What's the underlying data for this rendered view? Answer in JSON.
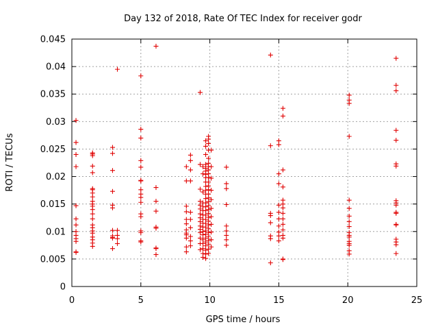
{
  "chart_data": {
    "type": "scatter",
    "title": "Day 132 of 2018, Rate Of TEC Index for receiver godr",
    "xlabel": "GPS time / hours",
    "ylabel": "ROTI / TECUs",
    "xlim": [
      0,
      25
    ],
    "ylim": [
      0,
      0.045
    ],
    "xticks": [
      0,
      5,
      10,
      15,
      20,
      25
    ],
    "xtick_labels": [
      "0",
      "5",
      "10",
      "15",
      "20",
      "25"
    ],
    "yticks": [
      0,
      0.005,
      0.01,
      0.015,
      0.02,
      0.025,
      0.03,
      0.035,
      0.04,
      0.045
    ],
    "ytick_labels": [
      "0",
      "0.005",
      "0.01",
      "0.015",
      "0.02",
      "0.025",
      "0.03",
      "0.035",
      "0.04",
      "0.045"
    ],
    "grid": true,
    "marker": "+",
    "marker_color": "#e00000",
    "series": [
      {
        "name": "ROTI",
        "points": [
          [
            0.3,
            0.0302
          ],
          [
            0.3,
            0.0262
          ],
          [
            0.3,
            0.024
          ],
          [
            0.3,
            0.0218
          ],
          [
            0.3,
            0.0147
          ],
          [
            0.3,
            0.0123
          ],
          [
            0.3,
            0.0112
          ],
          [
            0.3,
            0.01
          ],
          [
            0.3,
            0.0093
          ],
          [
            0.3,
            0.0087
          ],
          [
            0.3,
            0.0082
          ],
          [
            0.3,
            0.0063
          ],
          [
            0.3,
            0.0062
          ],
          [
            1.5,
            0.0243
          ],
          [
            1.5,
            0.0241
          ],
          [
            1.5,
            0.0238
          ],
          [
            1.5,
            0.0219
          ],
          [
            1.5,
            0.0207
          ],
          [
            1.5,
            0.0178
          ],
          [
            1.5,
            0.0176
          ],
          [
            1.5,
            0.017
          ],
          [
            1.5,
            0.0163
          ],
          [
            1.5,
            0.0155
          ],
          [
            1.5,
            0.015
          ],
          [
            1.5,
            0.0146
          ],
          [
            1.5,
            0.014
          ],
          [
            1.5,
            0.0132
          ],
          [
            1.5,
            0.0123
          ],
          [
            1.5,
            0.0112
          ],
          [
            1.5,
            0.0107
          ],
          [
            1.5,
            0.0101
          ],
          [
            1.5,
            0.0097
          ],
          [
            1.5,
            0.009
          ],
          [
            1.5,
            0.0085
          ],
          [
            1.5,
            0.0079
          ],
          [
            1.5,
            0.0073
          ],
          [
            2.95,
            0.0253
          ],
          [
            2.95,
            0.0242
          ],
          [
            2.95,
            0.0211
          ],
          [
            2.95,
            0.0173
          ],
          [
            2.95,
            0.0148
          ],
          [
            2.95,
            0.0143
          ],
          [
            2.95,
            0.0102
          ],
          [
            2.95,
            0.0092
          ],
          [
            2.95,
            0.0089
          ],
          [
            2.95,
            0.0088
          ],
          [
            2.95,
            0.0069
          ],
          [
            3.3,
            0.0395
          ],
          [
            3.3,
            0.0102
          ],
          [
            3.3,
            0.0093
          ],
          [
            3.3,
            0.0087
          ],
          [
            3.3,
            0.0078
          ],
          [
            5.0,
            0.0383
          ],
          [
            5.0,
            0.0286
          ],
          [
            5.0,
            0.027
          ],
          [
            5.0,
            0.0229
          ],
          [
            5.0,
            0.0217
          ],
          [
            5.0,
            0.0193
          ],
          [
            5.0,
            0.0192
          ],
          [
            5.0,
            0.0176
          ],
          [
            5.0,
            0.0168
          ],
          [
            5.0,
            0.0162
          ],
          [
            5.0,
            0.0153
          ],
          [
            5.0,
            0.0132
          ],
          [
            5.0,
            0.0127
          ],
          [
            5.0,
            0.0101
          ],
          [
            5.0,
            0.0098
          ],
          [
            5.0,
            0.0083
          ],
          [
            5.0,
            0.0081
          ],
          [
            6.1,
            0.0437
          ],
          [
            6.1,
            0.018
          ],
          [
            6.1,
            0.0155
          ],
          [
            6.1,
            0.0137
          ],
          [
            6.1,
            0.0108
          ],
          [
            6.1,
            0.0106
          ],
          [
            6.1,
            0.007
          ],
          [
            6.1,
            0.0069
          ],
          [
            6.1,
            0.0058
          ],
          [
            8.3,
            0.0218
          ],
          [
            8.3,
            0.0192
          ],
          [
            8.3,
            0.0146
          ],
          [
            8.3,
            0.0136
          ],
          [
            8.3,
            0.0122
          ],
          [
            8.3,
            0.0114
          ],
          [
            8.3,
            0.0103
          ],
          [
            8.3,
            0.0097
          ],
          [
            8.3,
            0.0094
          ],
          [
            8.3,
            0.0088
          ],
          [
            8.3,
            0.0072
          ],
          [
            8.3,
            0.0063
          ],
          [
            8.6,
            0.0239
          ],
          [
            8.6,
            0.0229
          ],
          [
            8.6,
            0.0212
          ],
          [
            8.6,
            0.0192
          ],
          [
            8.6,
            0.0135
          ],
          [
            8.6,
            0.0122
          ],
          [
            8.6,
            0.0107
          ],
          [
            8.6,
            0.0091
          ],
          [
            8.6,
            0.0083
          ],
          [
            8.6,
            0.0074
          ],
          [
            9.3,
            0.0353
          ],
          [
            9.3,
            0.0222
          ],
          [
            9.3,
            0.0177
          ],
          [
            9.3,
            0.0155
          ],
          [
            9.3,
            0.0148
          ],
          [
            9.3,
            0.0141
          ],
          [
            9.3,
            0.0132
          ],
          [
            9.3,
            0.0125
          ],
          [
            9.3,
            0.0118
          ],
          [
            9.3,
            0.011
          ],
          [
            9.3,
            0.0104
          ],
          [
            9.3,
            0.0098
          ],
          [
            9.3,
            0.0088
          ],
          [
            9.3,
            0.0078
          ],
          [
            9.3,
            0.0067
          ],
          [
            9.5,
            0.0218
          ],
          [
            9.5,
            0.0205
          ],
          [
            9.5,
            0.0172
          ],
          [
            9.5,
            0.0152
          ],
          [
            9.5,
            0.0145
          ],
          [
            9.5,
            0.0138
          ],
          [
            9.5,
            0.013
          ],
          [
            9.5,
            0.0122
          ],
          [
            9.5,
            0.0115
          ],
          [
            9.5,
            0.0108
          ],
          [
            9.5,
            0.01
          ],
          [
            9.5,
            0.0094
          ],
          [
            9.5,
            0.0085
          ],
          [
            9.5,
            0.0078
          ],
          [
            9.5,
            0.0069
          ],
          [
            9.5,
            0.006
          ],
          [
            9.5,
            0.0053
          ],
          [
            9.7,
            0.0265
          ],
          [
            9.7,
            0.0255
          ],
          [
            9.7,
            0.024
          ],
          [
            9.7,
            0.0222
          ],
          [
            9.7,
            0.0215
          ],
          [
            9.7,
            0.021
          ],
          [
            9.7,
            0.0204
          ],
          [
            9.7,
            0.0198
          ],
          [
            9.7,
            0.019
          ],
          [
            9.7,
            0.0182
          ],
          [
            9.7,
            0.0175
          ],
          [
            9.7,
            0.0168
          ],
          [
            9.7,
            0.016
          ],
          [
            9.7,
            0.0152
          ],
          [
            9.7,
            0.0145
          ],
          [
            9.7,
            0.0138
          ],
          [
            9.7,
            0.013
          ],
          [
            9.7,
            0.0122
          ],
          [
            9.7,
            0.0115
          ],
          [
            9.7,
            0.0108
          ],
          [
            9.7,
            0.0101
          ],
          [
            9.7,
            0.0095
          ],
          [
            9.7,
            0.0088
          ],
          [
            9.7,
            0.0081
          ],
          [
            9.7,
            0.0074
          ],
          [
            9.7,
            0.0066
          ],
          [
            9.7,
            0.0059
          ],
          [
            9.7,
            0.0051
          ],
          [
            9.9,
            0.0273
          ],
          [
            9.9,
            0.0268
          ],
          [
            9.9,
            0.026
          ],
          [
            9.9,
            0.0248
          ],
          [
            9.9,
            0.0233
          ],
          [
            9.9,
            0.0224
          ],
          [
            9.9,
            0.0218
          ],
          [
            9.9,
            0.0212
          ],
          [
            9.9,
            0.0205
          ],
          [
            9.9,
            0.0198
          ],
          [
            9.9,
            0.019
          ],
          [
            9.9,
            0.0183
          ],
          [
            9.9,
            0.0176
          ],
          [
            9.9,
            0.0168
          ],
          [
            9.9,
            0.0161
          ],
          [
            9.9,
            0.0154
          ],
          [
            9.9,
            0.0147
          ],
          [
            9.9,
            0.014
          ],
          [
            9.9,
            0.0133
          ],
          [
            9.9,
            0.0126
          ],
          [
            9.9,
            0.0119
          ],
          [
            9.9,
            0.0112
          ],
          [
            9.9,
            0.0105
          ],
          [
            9.9,
            0.0098
          ],
          [
            9.9,
            0.0091
          ],
          [
            9.9,
            0.0084
          ],
          [
            9.9,
            0.0077
          ],
          [
            9.9,
            0.0068
          ],
          [
            9.9,
            0.006
          ],
          [
            10.1,
            0.0248
          ],
          [
            10.1,
            0.0218
          ],
          [
            10.1,
            0.0197
          ],
          [
            10.1,
            0.0175
          ],
          [
            10.1,
            0.0158
          ],
          [
            10.1,
            0.0142
          ],
          [
            10.1,
            0.0127
          ],
          [
            10.1,
            0.0113
          ],
          [
            10.1,
            0.0099
          ],
          [
            10.1,
            0.0085
          ],
          [
            10.1,
            0.0072
          ],
          [
            11.2,
            0.0217
          ],
          [
            11.2,
            0.0187
          ],
          [
            11.2,
            0.0178
          ],
          [
            11.2,
            0.0149
          ],
          [
            11.2,
            0.011
          ],
          [
            11.2,
            0.0101
          ],
          [
            11.2,
            0.0093
          ],
          [
            11.2,
            0.0085
          ],
          [
            11.2,
            0.0075
          ],
          [
            14.4,
            0.0421
          ],
          [
            14.4,
            0.0256
          ],
          [
            14.4,
            0.0133
          ],
          [
            14.4,
            0.0129
          ],
          [
            14.4,
            0.0116
          ],
          [
            14.4,
            0.0092
          ],
          [
            14.4,
            0.0087
          ],
          [
            14.4,
            0.0043
          ],
          [
            15.0,
            0.0265
          ],
          [
            15.0,
            0.0258
          ],
          [
            15.0,
            0.0205
          ],
          [
            15.0,
            0.0187
          ],
          [
            15.0,
            0.0148
          ],
          [
            15.0,
            0.0135
          ],
          [
            15.0,
            0.0123
          ],
          [
            15.0,
            0.011
          ],
          [
            15.0,
            0.0099
          ],
          [
            15.0,
            0.0092
          ],
          [
            15.0,
            0.0083
          ],
          [
            15.3,
            0.0324
          ],
          [
            15.3,
            0.031
          ],
          [
            15.3,
            0.0212
          ],
          [
            15.3,
            0.0181
          ],
          [
            15.3,
            0.0157
          ],
          [
            15.3,
            0.015
          ],
          [
            15.3,
            0.0143
          ],
          [
            15.3,
            0.0133
          ],
          [
            15.3,
            0.0123
          ],
          [
            15.3,
            0.0113
          ],
          [
            15.3,
            0.0103
          ],
          [
            15.3,
            0.0093
          ],
          [
            15.3,
            0.0088
          ],
          [
            15.3,
            0.005
          ],
          [
            15.3,
            0.0049
          ],
          [
            20.1,
            0.0348
          ],
          [
            20.1,
            0.0339
          ],
          [
            20.1,
            0.0333
          ],
          [
            20.1,
            0.0273
          ],
          [
            20.1,
            0.0157
          ],
          [
            20.1,
            0.0142
          ],
          [
            20.1,
            0.0128
          ],
          [
            20.1,
            0.0118
          ],
          [
            20.1,
            0.0109
          ],
          [
            20.1,
            0.0098
          ],
          [
            20.1,
            0.0093
          ],
          [
            20.1,
            0.009
          ],
          [
            20.1,
            0.0082
          ],
          [
            20.1,
            0.0078
          ],
          [
            20.1,
            0.0075
          ],
          [
            20.1,
            0.0065
          ],
          [
            20.1,
            0.0059
          ],
          [
            23.5,
            0.0415
          ],
          [
            23.5,
            0.0366
          ],
          [
            23.5,
            0.0356
          ],
          [
            23.5,
            0.0284
          ],
          [
            23.5,
            0.0266
          ],
          [
            23.5,
            0.0223
          ],
          [
            23.5,
            0.0219
          ],
          [
            23.5,
            0.0156
          ],
          [
            23.5,
            0.0152
          ],
          [
            23.5,
            0.0148
          ],
          [
            23.5,
            0.0135
          ],
          [
            23.5,
            0.0133
          ],
          [
            23.5,
            0.0113
          ],
          [
            23.5,
            0.0112
          ],
          [
            23.5,
            0.0086
          ],
          [
            23.5,
            0.0081
          ],
          [
            23.5,
            0.0076
          ],
          [
            23.5,
            0.006
          ]
        ]
      }
    ]
  }
}
